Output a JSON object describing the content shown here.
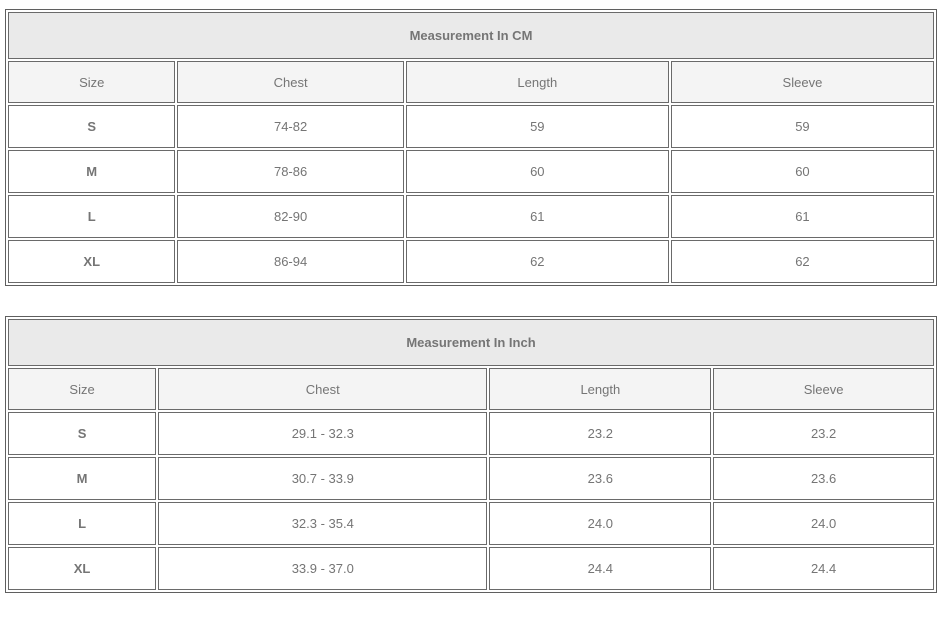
{
  "colors": {
    "title_bar_bg": "#eaeaea",
    "header_cell_bg": "#f4f4f4",
    "cell_border": "#6a6a6a",
    "outer_border": "#5f5f5f",
    "text_gray": "#757575",
    "title_text": "#7f7f7f"
  },
  "tables": [
    {
      "title": "Measurement In CM",
      "columns": {
        "size": "Size",
        "chest": "Chest",
        "length": "Length",
        "sleeve": "Sleeve"
      },
      "rows": [
        {
          "size": "S",
          "chest": "74-82",
          "length": "59",
          "sleeve": "59"
        },
        {
          "size": "M",
          "chest": "78-86",
          "length": "60",
          "sleeve": "60"
        },
        {
          "size": "L",
          "chest": "82-90",
          "length": "61",
          "sleeve": "61"
        },
        {
          "size": "XL",
          "chest": "86-94",
          "length": "62",
          "sleeve": "62"
        }
      ]
    },
    {
      "title": "Measurement In Inch",
      "columns": {
        "size": "Size",
        "chest": "Chest",
        "length": "Length",
        "sleeve": "Sleeve"
      },
      "rows": [
        {
          "size": "S",
          "chest": "29.1 - 32.3",
          "length": "23.2",
          "sleeve": "23.2"
        },
        {
          "size": "M",
          "chest": "30.7 - 33.9",
          "length": "23.6",
          "sleeve": "23.6"
        },
        {
          "size": "L",
          "chest": "32.3 - 35.4",
          "length": "24.0",
          "sleeve": "24.0"
        },
        {
          "size": "XL",
          "chest": "33.9 - 37.0",
          "length": "24.4",
          "sleeve": "24.4"
        }
      ]
    }
  ]
}
